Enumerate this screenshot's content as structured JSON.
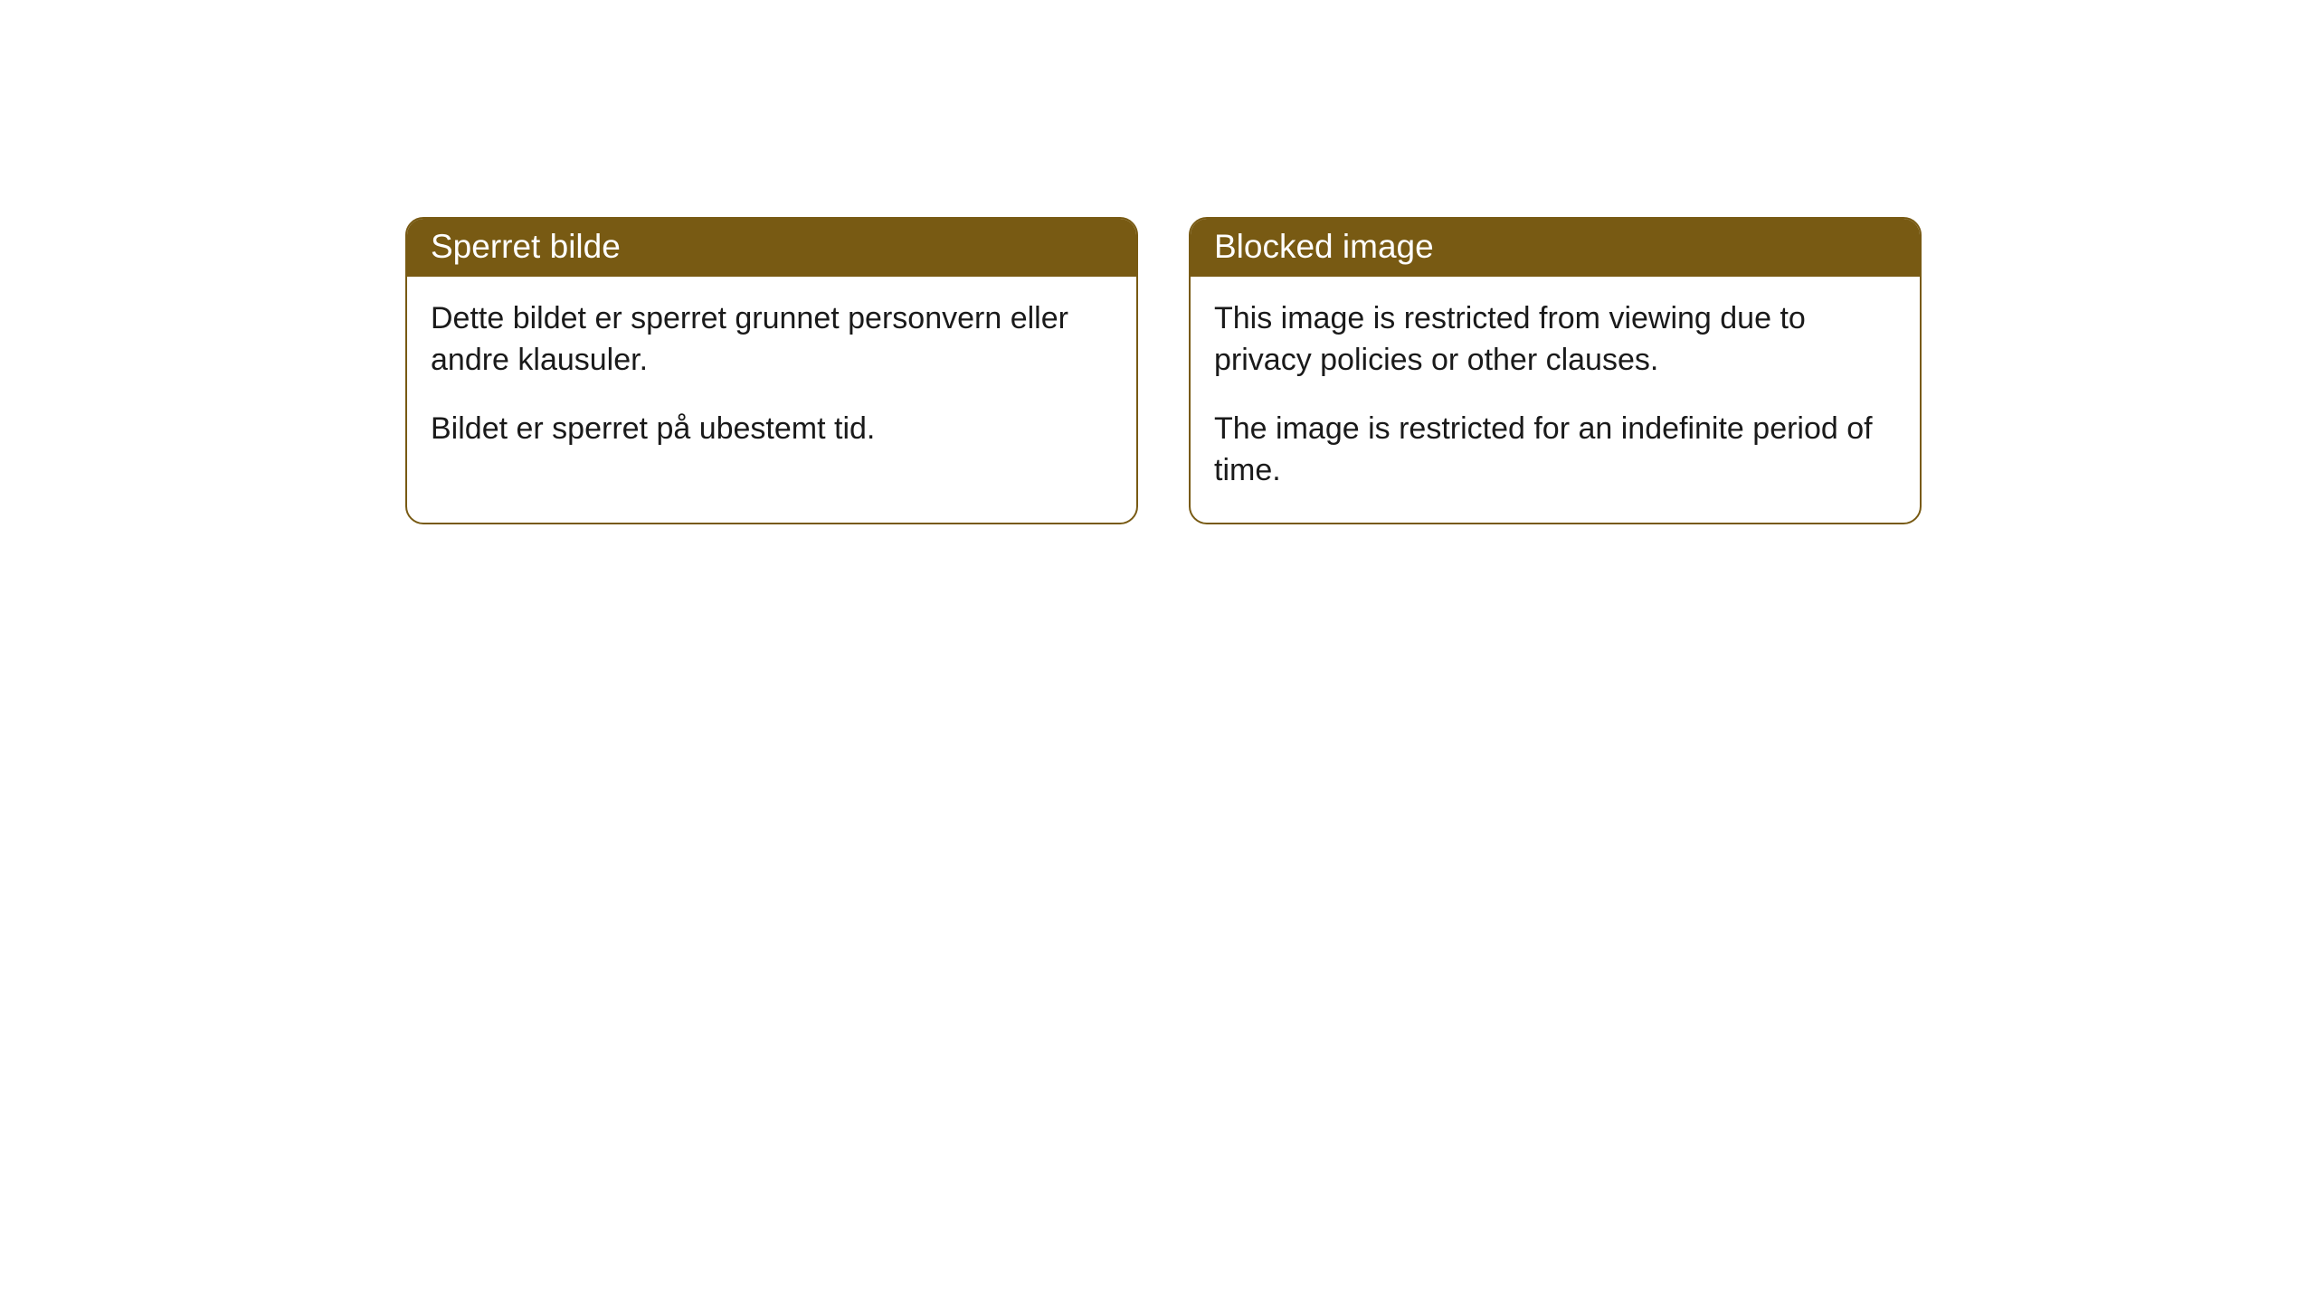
{
  "cards": [
    {
      "title": "Sperret bilde",
      "paragraph1": "Dette bildet er sperret grunnet personvern eller andre klausuler.",
      "paragraph2": "Bildet er sperret på ubestemt tid."
    },
    {
      "title": "Blocked image",
      "paragraph1": "This image is restricted from viewing due to privacy policies or other clauses.",
      "paragraph2": "The image is restricted for an indefinite period of time."
    }
  ],
  "styling": {
    "header_background": "#785a13",
    "header_text_color": "#ffffff",
    "border_color": "#785a13",
    "body_background": "#ffffff",
    "body_text_color": "#1a1a1a",
    "border_radius": 20,
    "header_fontsize": 37,
    "body_fontsize": 34
  }
}
